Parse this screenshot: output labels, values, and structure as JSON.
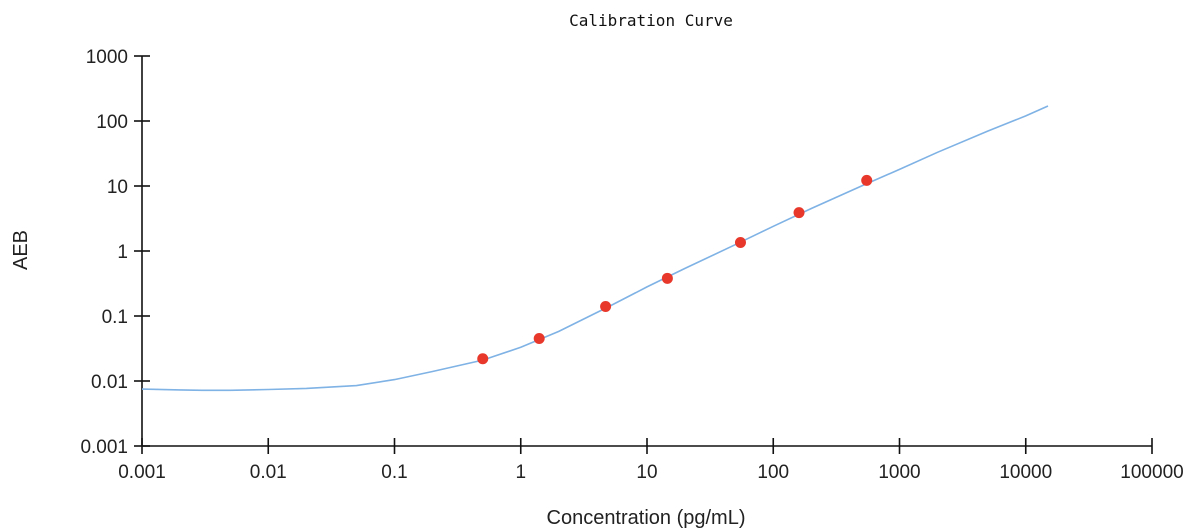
{
  "chart_data": {
    "type": "scatter",
    "title": "Calibration Curve",
    "xlabel": "Concentration (pg/mL)",
    "ylabel": "AEB",
    "x_scale": "log",
    "y_scale": "log",
    "xlim": [
      0.001,
      100000
    ],
    "ylim": [
      0.001,
      1000
    ],
    "x_ticks": [
      "0.001",
      "0.01",
      "0.1",
      "1",
      "10",
      "100",
      "1000",
      "10000",
      "100000"
    ],
    "y_ticks": [
      "0.001",
      "0.01",
      "0.1",
      "1",
      "10",
      "100",
      "1000"
    ],
    "grid": false,
    "legend": "none",
    "series": [
      {
        "kind": "points",
        "color": "#e8382b",
        "x": [
          0.5,
          1.4,
          4.7,
          14.5,
          55,
          160,
          550
        ],
        "y": [
          0.022,
          0.045,
          0.14,
          0.38,
          1.35,
          3.9,
          12.2
        ]
      },
      {
        "kind": "fit-line",
        "color": "#7fb2e5",
        "x": [
          0.001,
          0.002,
          0.003,
          0.005,
          0.01,
          0.02,
          0.05,
          0.1,
          0.2,
          0.5,
          1,
          2,
          5,
          10,
          20,
          50,
          100,
          200,
          500,
          1000,
          2000,
          5000,
          10000,
          15000
        ],
        "y": [
          0.0075,
          0.0073,
          0.0072,
          0.0072,
          0.0074,
          0.0077,
          0.0085,
          0.0105,
          0.014,
          0.021,
          0.033,
          0.058,
          0.14,
          0.28,
          0.54,
          1.25,
          2.4,
          4.5,
          10,
          18,
          33,
          70,
          120,
          170
        ]
      }
    ]
  }
}
